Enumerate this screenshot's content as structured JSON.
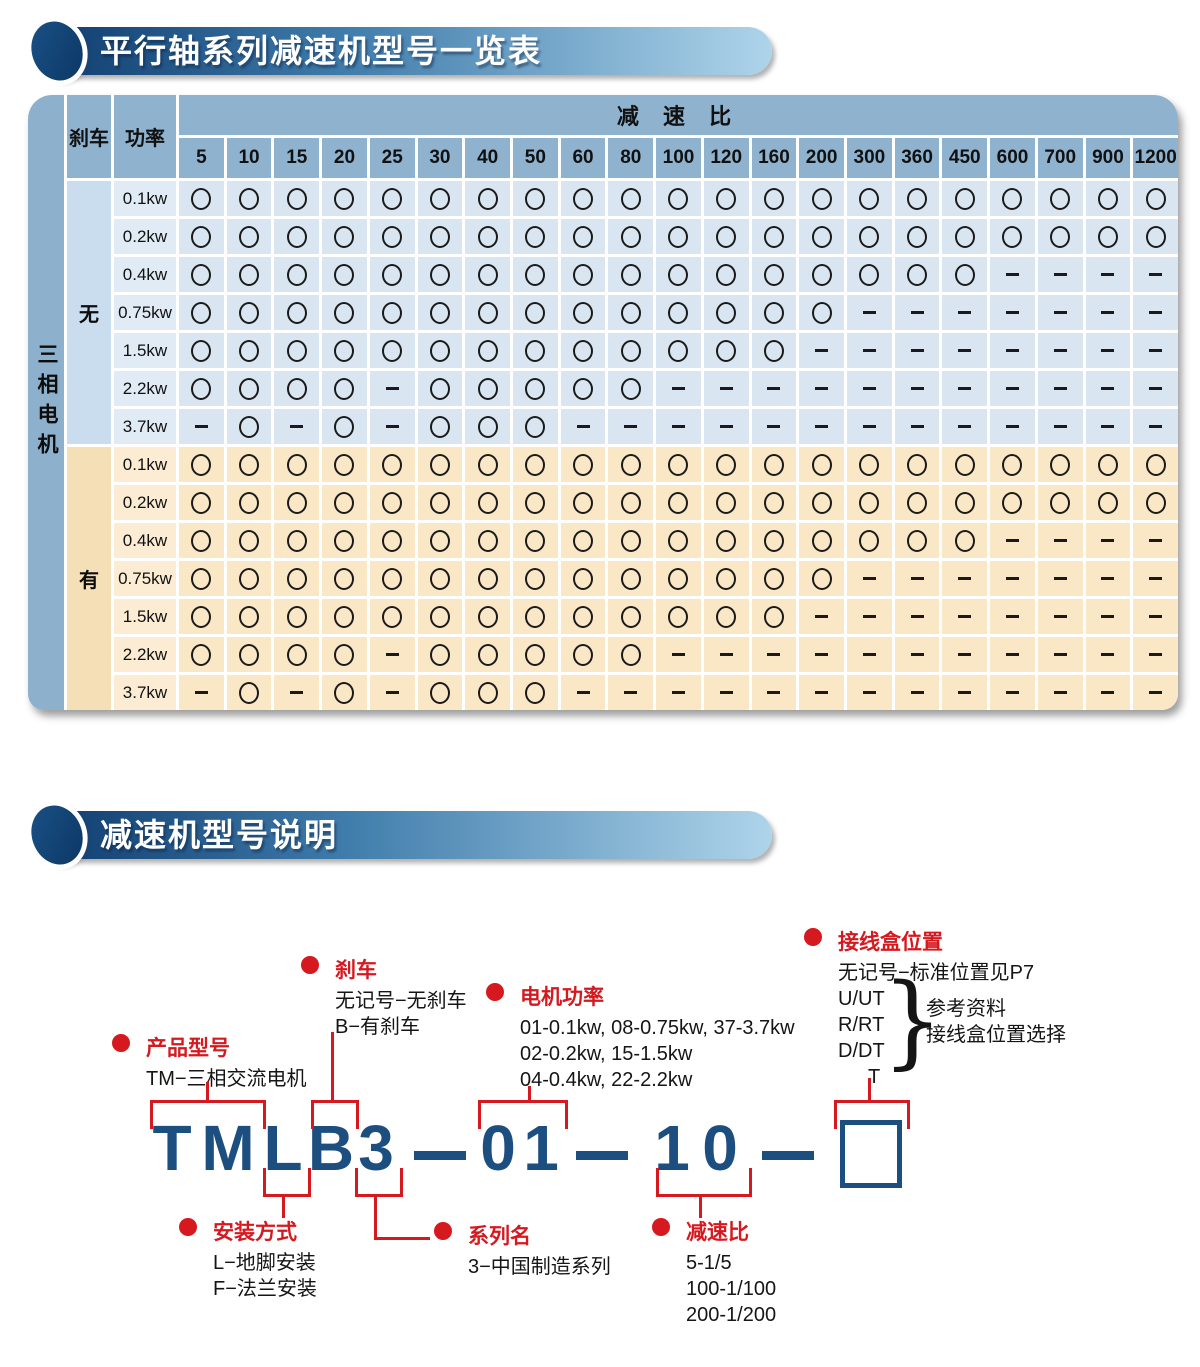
{
  "colors": {
    "accent_red": "#d6181f",
    "model_blue": "#1c4e80",
    "banner_dark": "#123f72",
    "banner_light": "#aed4ea",
    "header_blue": "#8fb3cf",
    "side_bar_blue": "#8db0cc",
    "brake_none_bg": "#c9ddee",
    "power_blue_bg": "#e0ebf5",
    "cell_blue_bg": "#d9e6f1",
    "brake_yes_bg": "#f5dfb6",
    "power_orange_bg": "#fbecd3",
    "cell_orange_bg": "#fae7c6"
  },
  "section1": {
    "title": "平行轴系列减速机型号一览表",
    "table": {
      "brake_header": "刹车",
      "power_header": "功率",
      "ratio_header": "减 速 比",
      "motor_label": "三相电机",
      "marks": {
        "available": "○",
        "unavailable": "−"
      },
      "ratios": [
        "5",
        "10",
        "15",
        "20",
        "25",
        "30",
        "40",
        "50",
        "60",
        "80",
        "100",
        "120",
        "160",
        "200",
        "300",
        "360",
        "450",
        "600",
        "700",
        "900",
        "1200"
      ],
      "groups": [
        {
          "brake": "无",
          "rows": [
            {
              "power": "0.1kw",
              "cells": "OOOOOOOOOOOOOOOOOOOOO"
            },
            {
              "power": "0.2kw",
              "cells": "OOOOOOOOOOOOOOOOOOOOO"
            },
            {
              "power": "0.4kw",
              "cells": "OOOOOOOOOOOOOOOOO----"
            },
            {
              "power": "0.75kw",
              "cells": "OOOOOOOOOOOOOO-------"
            },
            {
              "power": "1.5kw",
              "cells": "OOOOOOOOOOOOO--------"
            },
            {
              "power": "2.2kw",
              "cells": "OOOO-OOOOO-----------"
            },
            {
              "power": "3.7kw",
              "cells": "-O-O-OOO-------------"
            }
          ]
        },
        {
          "brake": "有",
          "rows": [
            {
              "power": "0.1kw",
              "cells": "OOOOOOOOOOOOOOOOOOOOO"
            },
            {
              "power": "0.2kw",
              "cells": "OOOOOOOOOOOOOOOOOOOOO"
            },
            {
              "power": "0.4kw",
              "cells": "OOOOOOOOOOOOOOOOO----"
            },
            {
              "power": "0.75kw",
              "cells": "OOOOOOOOOOOOOO-------"
            },
            {
              "power": "1.5kw",
              "cells": "OOOOOOOOOOOOO--------"
            },
            {
              "power": "2.2kw",
              "cells": "OOOO-OOOOO-----------"
            },
            {
              "power": "3.7kw",
              "cells": "-O-O-OOO-------------"
            }
          ]
        }
      ]
    }
  },
  "section2": {
    "title": "减速机型号说明",
    "model": {
      "model_text": "TMLB3—01—10—□",
      "glyphs": [
        "T",
        "M",
        "L",
        "B",
        "3",
        "0",
        "1",
        "1",
        "0"
      ]
    },
    "annotations": {
      "product": {
        "label": "产品型号",
        "lines": [
          "TM−三相交流电机"
        ]
      },
      "brake": {
        "label": "刹车",
        "lines": [
          "无记号−无刹车",
          "B−有刹车"
        ]
      },
      "motor_power": {
        "label": "电机功率",
        "lines": [
          "01-0.1kw, 08-0.75kw, 37-3.7kw",
          "02-0.2kw, 15-1.5kw",
          "04-0.4kw, 22-2.2kw"
        ]
      },
      "junction_box": {
        "label": "接线盒位置",
        "note": "无记号−标准位置见P7",
        "codes": [
          "U/UT",
          "R/RT",
          "D/DT",
          "T"
        ],
        "brace": "}",
        "brace_lines": [
          "参考资料",
          "接线盒位置选择"
        ]
      },
      "mounting": {
        "label": "安装方式",
        "lines": [
          "L−地脚安装",
          "F−法兰安装"
        ]
      },
      "series": {
        "label": "系列名",
        "lines": [
          "3−中国制造系列"
        ]
      },
      "ratio": {
        "label": "减速比",
        "lines": [
          "5-1/5",
          "100-1/100",
          "200-1/200"
        ]
      }
    }
  }
}
